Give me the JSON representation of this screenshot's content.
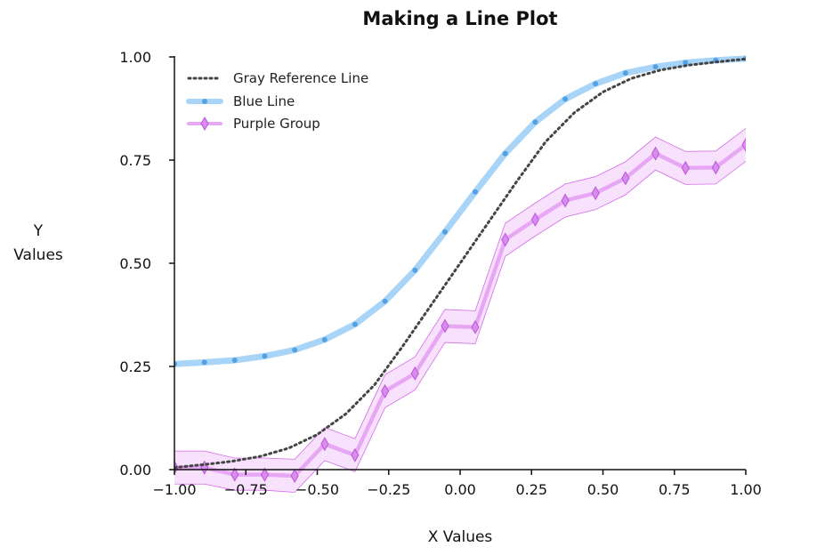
{
  "chart_data": {
    "type": "line",
    "title": "Making a Line Plot",
    "xlabel": "X Values",
    "ylabel_lines": [
      "Y",
      "Values"
    ],
    "xlim": [
      -1.0,
      1.0
    ],
    "ylim": [
      0.0,
      1.0
    ],
    "x_ticks": [
      -1.0,
      -0.75,
      -0.5,
      -0.25,
      0.0,
      0.25,
      0.5,
      0.75,
      1.0
    ],
    "x_tick_labels": [
      "−1.00",
      "−0.75",
      "−0.50",
      "−0.25",
      "0.00",
      "0.25",
      "0.50",
      "0.75",
      "1.00"
    ],
    "y_ticks": [
      0.0,
      0.25,
      0.5,
      0.75,
      1.0
    ],
    "y_tick_labels": [
      "0.00",
      "0.25",
      "0.50",
      "0.75",
      "1.00"
    ],
    "grid": false,
    "legend_position": "top-left",
    "series": [
      {
        "name": "Gray Reference Line",
        "style": "dotted",
        "color": "#444444",
        "x": [
          -1.0,
          -0.9,
          -0.8,
          -0.7,
          -0.6,
          -0.5,
          -0.4,
          -0.3,
          -0.2,
          -0.1,
          0.0,
          0.1,
          0.2,
          0.3,
          0.4,
          0.5,
          0.6,
          0.7,
          0.8,
          0.9,
          1.0
        ],
        "y": [
          0.005,
          0.012,
          0.02,
          0.032,
          0.052,
          0.085,
          0.135,
          0.205,
          0.3,
          0.4,
          0.5,
          0.6,
          0.7,
          0.795,
          0.865,
          0.915,
          0.948,
          0.968,
          0.98,
          0.988,
          0.995
        ]
      },
      {
        "name": "Blue Line",
        "style": "thick-with-circle-markers",
        "color": "#a8d4f7",
        "marker_color": "#3d93e0",
        "x": [
          -1.0,
          -0.895,
          -0.789,
          -0.684,
          -0.579,
          -0.474,
          -0.368,
          -0.263,
          -0.158,
          -0.053,
          0.053,
          0.158,
          0.263,
          0.368,
          0.474,
          0.579,
          0.684,
          0.789,
          0.895,
          1.0
        ],
        "y": [
          0.256,
          0.26,
          0.265,
          0.275,
          0.29,
          0.315,
          0.352,
          0.408,
          0.483,
          0.576,
          0.673,
          0.766,
          0.842,
          0.898,
          0.935,
          0.961,
          0.976,
          0.986,
          0.992,
          0.996
        ]
      },
      {
        "name": "Purple Group",
        "style": "thick-with-diamond-markers-and-band",
        "color": "#e8a7f5",
        "marker_color": "#c76ae6",
        "band_color": "#f7dcfc",
        "band_edge_color": "#d16ce6",
        "x": [
          -1.0,
          -0.895,
          -0.789,
          -0.684,
          -0.579,
          -0.474,
          -0.368,
          -0.263,
          -0.158,
          -0.053,
          0.053,
          0.158,
          0.263,
          0.368,
          0.474,
          0.579,
          0.684,
          0.789,
          0.895,
          1.0
        ],
        "y": [
          0.005,
          0.005,
          -0.012,
          -0.012,
          -0.015,
          0.062,
          0.035,
          0.19,
          0.233,
          0.348,
          0.345,
          0.557,
          0.606,
          0.652,
          0.67,
          0.706,
          0.766,
          0.731,
          0.732,
          0.787
        ],
        "y_low": [
          -0.035,
          -0.035,
          -0.05,
          -0.05,
          -0.055,
          0.022,
          -0.005,
          0.15,
          0.193,
          0.308,
          0.305,
          0.517,
          0.566,
          0.612,
          0.63,
          0.666,
          0.726,
          0.691,
          0.692,
          0.747
        ],
        "y_high": [
          0.045,
          0.045,
          0.028,
          0.028,
          0.025,
          0.102,
          0.075,
          0.23,
          0.273,
          0.388,
          0.385,
          0.597,
          0.646,
          0.692,
          0.71,
          0.746,
          0.806,
          0.771,
          0.772,
          0.827
        ]
      }
    ]
  }
}
